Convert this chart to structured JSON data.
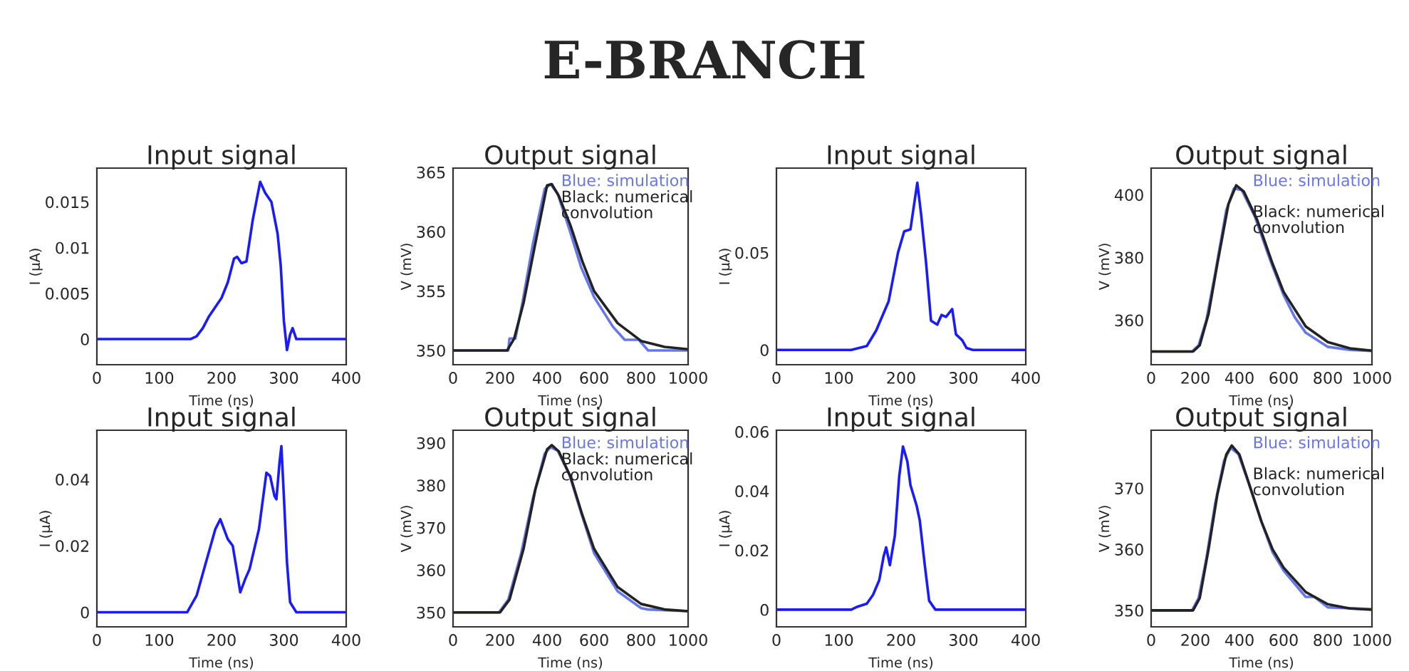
{
  "chart_data": [
    {
      "type": "other",
      "title": "E-BRANCH"
    },
    {
      "type": "line",
      "title": "Input signal",
      "xlabel": "Time (ns)",
      "ylabel": "I (µA)",
      "xlim": [
        0,
        400
      ],
      "xticks": [
        0,
        100,
        200,
        300,
        400
      ],
      "ylim": [
        -0.0028,
        0.0187
      ],
      "yticks": [
        0,
        0.005,
        0.01,
        0.015
      ],
      "series": [
        {
          "color": "#1a1aff",
          "x": [
            0,
            150,
            160,
            170,
            180,
            200,
            210,
            220,
            225,
            232,
            240,
            250,
            262,
            270,
            280,
            290,
            295,
            300,
            305,
            310,
            314,
            320,
            400
          ],
          "values": [
            0,
            0,
            0.0003,
            0.0012,
            0.0025,
            0.0045,
            0.0062,
            0.0088,
            0.009,
            0.0083,
            0.0085,
            0.013,
            0.0172,
            0.016,
            0.015,
            0.0115,
            0.008,
            0.002,
            -0.0012,
            0.0005,
            0.0012,
            0,
            0
          ]
        }
      ]
    },
    {
      "type": "line",
      "title": "Output signal",
      "xlabel": "Time (ns)",
      "ylabel": "V (mV)",
      "xlim": [
        0,
        1000
      ],
      "xticks": [
        0,
        200,
        400,
        600,
        800,
        1000
      ],
      "ylim": [
        348.8,
        365.35
      ],
      "yticks": [
        350,
        355,
        360,
        365
      ],
      "annotations": [
        "Blue: simulation",
        "Black: numerical convolution"
      ],
      "series": [
        {
          "color": "#6677ee",
          "x": [
            0,
            235,
            240,
            265,
            295,
            340,
            390,
            415,
            445,
            495,
            545,
            600,
            680,
            730,
            790,
            830,
            1000
          ],
          "values": [
            350,
            350,
            351,
            351,
            354,
            359,
            363.6,
            364,
            363.2,
            360.2,
            357,
            354.5,
            352,
            350.9,
            350.9,
            350,
            350
          ]
        },
        {
          "color": "#222222",
          "x": [
            0,
            230,
            260,
            300,
            350,
            400,
            420,
            450,
            500,
            550,
            600,
            700,
            800,
            900,
            1000
          ],
          "values": [
            350,
            350,
            351,
            354,
            359,
            363.9,
            364,
            363,
            360.5,
            357.5,
            355,
            352.3,
            350.8,
            350.3,
            350.1
          ]
        }
      ]
    },
    {
      "type": "line",
      "title": "Input signal",
      "xlabel": "Time (ns)",
      "ylabel": "I (µA)",
      "xlim": [
        0,
        400
      ],
      "xticks": [
        0,
        100,
        200,
        300,
        400
      ],
      "ylim": [
        -0.0076,
        0.0935
      ],
      "yticks": [
        0,
        0.05
      ],
      "series": [
        {
          "color": "#1a1aff",
          "x": [
            0,
            120,
            145,
            160,
            180,
            195,
            205,
            215,
            220,
            226,
            232,
            240,
            248,
            258,
            265,
            272,
            282,
            288,
            298,
            305,
            315,
            400
          ],
          "values": [
            0,
            0,
            0.002,
            0.01,
            0.025,
            0.05,
            0.061,
            0.062,
            0.073,
            0.086,
            0.07,
            0.045,
            0.015,
            0.013,
            0.018,
            0.017,
            0.021,
            0.008,
            0.005,
            0.001,
            0,
            0
          ]
        }
      ]
    },
    {
      "type": "line",
      "title": "Output signal",
      "xlabel": "Time (ns)",
      "ylabel": "V (mV)",
      "xlim": [
        0,
        1000
      ],
      "xticks": [
        0,
        200,
        400,
        600,
        800,
        1000
      ],
      "ylim": [
        345.8,
        408.5
      ],
      "yticks": [
        360,
        380,
        400
      ],
      "annotations": [
        "Blue: simulation",
        "Black: numerical convolution"
      ],
      "series": [
        {
          "color": "#6677ee",
          "x": [
            0,
            185,
            215,
            250,
            290,
            340,
            375,
            410,
            470,
            540,
            600,
            650,
            700,
            800,
            900,
            1000
          ],
          "values": [
            350,
            350,
            352,
            360,
            375,
            395,
            402,
            401.5,
            393,
            379,
            368,
            361,
            356,
            351.5,
            350.5,
            350.2
          ]
        },
        {
          "color": "#222222",
          "x": [
            0,
            190,
            220,
            260,
            300,
            350,
            385,
            420,
            480,
            550,
            600,
            700,
            800,
            900,
            1000
          ],
          "values": [
            350,
            350,
            352,
            362,
            378,
            397,
            403,
            401,
            392,
            378,
            369,
            358,
            353,
            351,
            350.3
          ]
        }
      ]
    },
    {
      "type": "line",
      "title": "Input signal",
      "xlabel": "Time (ns)",
      "ylabel": "I (µA)",
      "xlim": [
        0,
        400
      ],
      "xticks": [
        0,
        100,
        200,
        300,
        400
      ],
      "ylim": [
        -0.0044,
        0.0548
      ],
      "yticks": [
        0,
        0.02,
        0.04
      ],
      "series": [
        {
          "color": "#1a1aff",
          "x": [
            0,
            145,
            160,
            175,
            190,
            198,
            210,
            218,
            225,
            230,
            238,
            245,
            260,
            272,
            278,
            285,
            288,
            293,
            296,
            300,
            305,
            310,
            320,
            400
          ],
          "values": [
            0,
            0,
            0.005,
            0.015,
            0.025,
            0.028,
            0.022,
            0.02,
            0.012,
            0.006,
            0.01,
            0.013,
            0.025,
            0.042,
            0.041,
            0.035,
            0.034,
            0.045,
            0.05,
            0.035,
            0.015,
            0.003,
            0,
            0
          ]
        }
      ]
    },
    {
      "type": "line",
      "title": "Output signal",
      "xlabel": "Time (ns)",
      "ylabel": "V (mV)",
      "xlim": [
        0,
        1000
      ],
      "xticks": [
        0,
        200,
        400,
        600,
        800,
        1000
      ],
      "ylim": [
        346.6,
        393
      ],
      "yticks": [
        350,
        360,
        370,
        380,
        390
      ],
      "annotations": [
        "Blue: simulation",
        "Black: numerical convolution"
      ],
      "series": [
        {
          "color": "#6677ee",
          "x": [
            0,
            195,
            235,
            290,
            340,
            390,
            415,
            445,
            495,
            545,
            600,
            700,
            800,
            830,
            1000
          ],
          "values": [
            350,
            350,
            353,
            364,
            377,
            387.5,
            389,
            388.2,
            382.5,
            373.5,
            364,
            355,
            351,
            350.7,
            350.3
          ]
        },
        {
          "color": "#222222",
          "x": [
            0,
            200,
            240,
            300,
            350,
            400,
            420,
            450,
            500,
            550,
            600,
            700,
            800,
            900,
            1000
          ],
          "values": [
            350,
            350,
            353,
            365,
            379,
            388.5,
            389.5,
            388,
            382,
            373,
            365,
            356,
            352,
            350.7,
            350.3
          ]
        }
      ]
    },
    {
      "type": "line",
      "title": "Input signal",
      "xlabel": "Time (ns)",
      "ylabel": "I (µA)",
      "xlim": [
        0,
        400
      ],
      "xticks": [
        0,
        100,
        200,
        300,
        400
      ],
      "ylim": [
        -0.0058,
        0.0605
      ],
      "yticks": [
        0,
        0.02,
        0.04,
        0.06
      ],
      "series": [
        {
          "color": "#1a1aff",
          "x": [
            0,
            120,
            130,
            145,
            155,
            165,
            172,
            176,
            182,
            190,
            197,
            203,
            210,
            215,
            225,
            230,
            238,
            245,
            255,
            400
          ],
          "values": [
            0,
            0,
            0.001,
            0.002,
            0.005,
            0.01,
            0.018,
            0.021,
            0.015,
            0.025,
            0.045,
            0.055,
            0.05,
            0.042,
            0.035,
            0.03,
            0.015,
            0.003,
            0,
            0
          ]
        }
      ]
    },
    {
      "type": "line",
      "title": "Output signal",
      "xlabel": "Time (ns)",
      "ylabel": "V (mV)",
      "xlim": [
        0,
        1000
      ],
      "xticks": [
        0,
        200,
        400,
        600,
        800,
        1000
      ],
      "ylim": [
        347.3,
        379.5
      ],
      "yticks": [
        350,
        360,
        370
      ],
      "annotations": [
        "Blue: simulation",
        "Black: numerical convolution"
      ],
      "series": [
        {
          "color": "#6677ee",
          "x": [
            0,
            185,
            215,
            250,
            290,
            330,
            360,
            395,
            445,
            495,
            550,
            600,
            700,
            740,
            800,
            1000
          ],
          "values": [
            350,
            350,
            352,
            358.5,
            367.5,
            374.5,
            376.6,
            375.6,
            370.5,
            365,
            359.5,
            356.5,
            352.2,
            352.2,
            350.5,
            350.2
          ]
        },
        {
          "color": "#222222",
          "x": [
            0,
            190,
            220,
            260,
            300,
            340,
            365,
            400,
            450,
            500,
            550,
            600,
            700,
            800,
            900,
            1000
          ],
          "values": [
            350,
            350,
            352,
            360,
            369,
            375.5,
            377,
            375.5,
            370,
            364.5,
            360,
            357,
            353,
            351,
            350.3,
            350.1
          ]
        }
      ]
    }
  ]
}
